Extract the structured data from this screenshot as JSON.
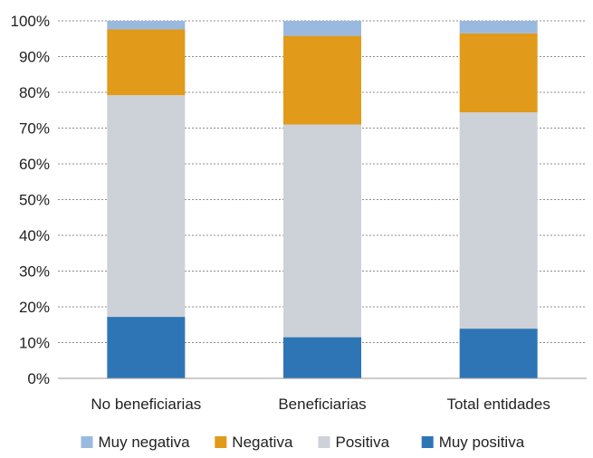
{
  "chart_data": {
    "type": "bar",
    "stacked": true,
    "percent": true,
    "categories": [
      "No beneficiarias",
      "Beneficiarias",
      "Total entidades"
    ],
    "series": [
      {
        "name": "Muy positiva",
        "color": "#2e75b6",
        "values": [
          17.2,
          11.5,
          13.9
        ]
      },
      {
        "name": "Positiva",
        "color": "#cdd1d8",
        "values": [
          62.0,
          59.5,
          60.5
        ]
      },
      {
        "name": "Negativa",
        "color": "#e19a1a",
        "values": [
          18.4,
          24.8,
          22.1
        ]
      },
      {
        "name": "Muy negativa",
        "color": "#9ab9df",
        "values": [
          2.4,
          4.2,
          3.5
        ]
      }
    ],
    "legend_order": [
      "Muy negativa",
      "Negativa",
      "Positiva",
      "Muy positiva"
    ],
    "ylim": [
      0,
      100
    ],
    "yticks": [
      "0%",
      "10%",
      "20%",
      "30%",
      "40%",
      "50%",
      "60%",
      "70%",
      "80%",
      "90%",
      "100%"
    ],
    "grid": true,
    "legend_position": "bottom",
    "title": "",
    "xlabel": "",
    "ylabel": ""
  }
}
